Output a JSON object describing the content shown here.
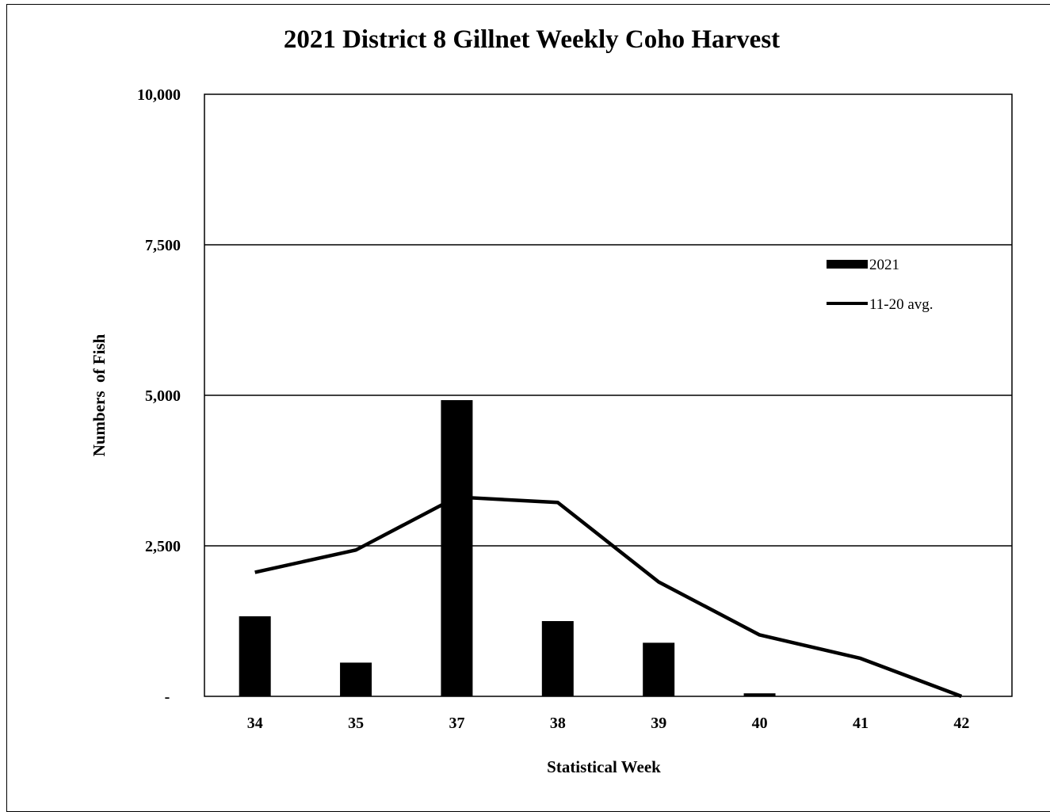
{
  "chart_data": {
    "type": "bar",
    "title": "2021 District 8 Gillnet Weekly Coho Harvest",
    "xlabel": "Statistical Week",
    "ylabel": "Numbers  of Fish",
    "categories": [
      "34",
      "35",
      "37",
      "38",
      "39",
      "40",
      "41",
      "42"
    ],
    "ylim": [
      0,
      10000
    ],
    "yticks": [
      0,
      2500,
      5000,
      7500,
      10000
    ],
    "ytick_labels": [
      "-",
      "2,500",
      "5,000",
      "7,500",
      "10,000"
    ],
    "grid": true,
    "legend_position": "top-right",
    "series": [
      {
        "name": "2021",
        "type": "bar",
        "color": "#000000",
        "values": [
          1330,
          560,
          4920,
          1250,
          890,
          50,
          0,
          0
        ]
      },
      {
        "name": "11-20 avg.",
        "type": "line",
        "color": "#000000",
        "values": [
          2060,
          2430,
          3310,
          3220,
          1900,
          1020,
          630,
          0
        ]
      }
    ]
  }
}
